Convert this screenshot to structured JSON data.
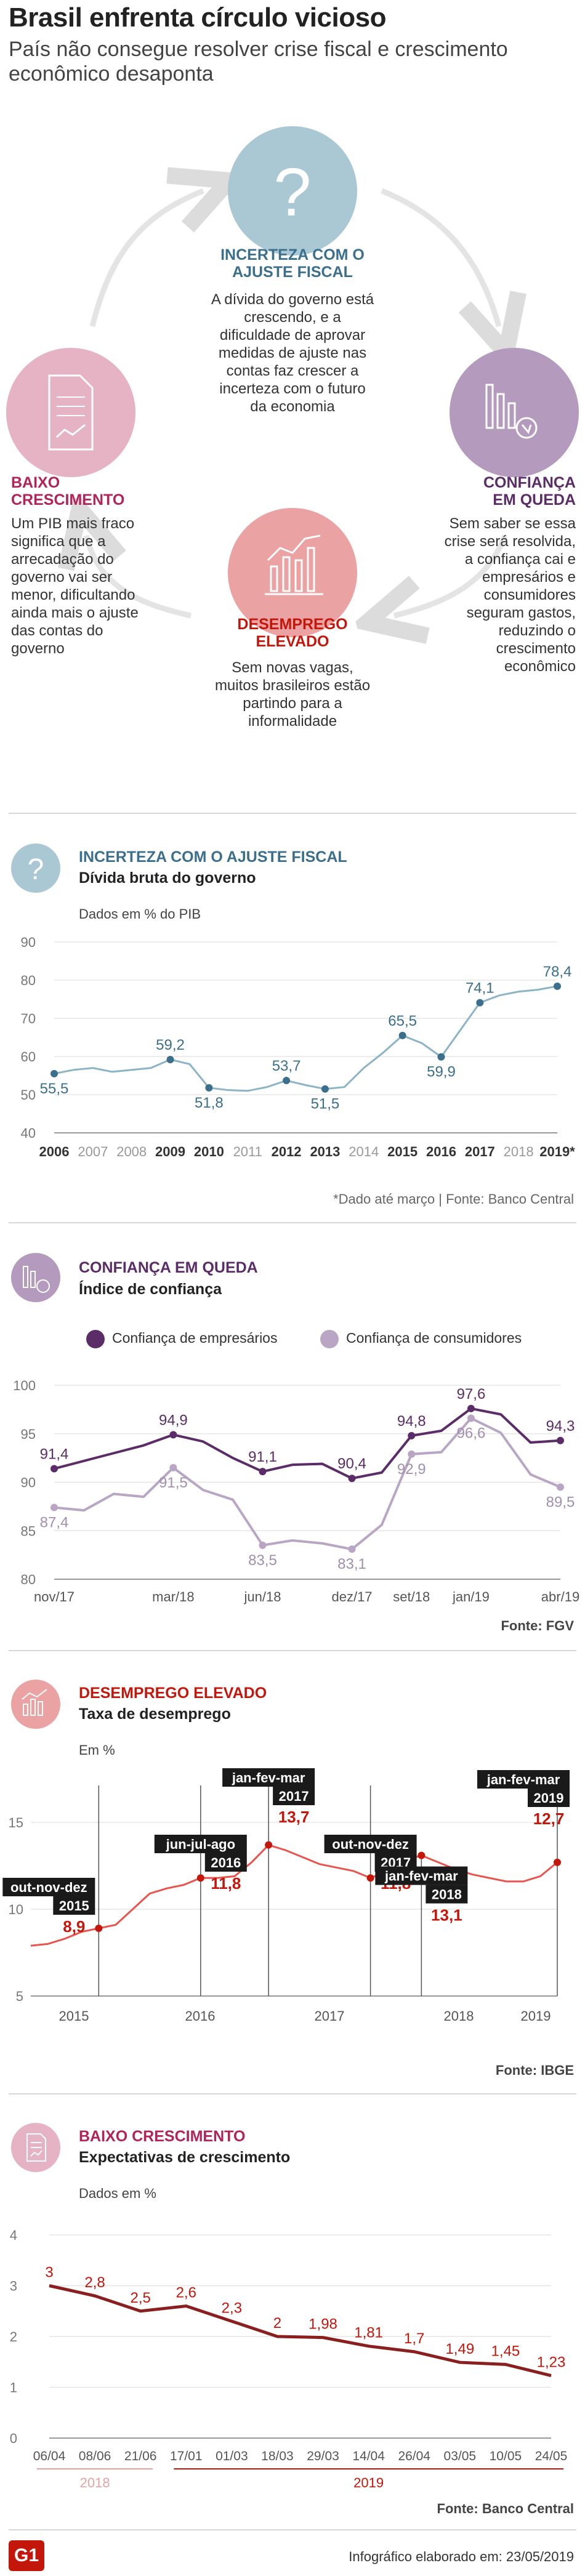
{
  "header": {
    "title": "Brasil enfrenta círculo vicioso",
    "subtitle": "País não consegue resolver crise fiscal e crescimento econômico desaponta"
  },
  "cycle": {
    "top": {
      "title": "INCERTEZA COM O AJUSTE FISCAL",
      "body": "A dívida do governo está crescendo, e a dificuldade de aprovar medidas de ajuste nas contas faz crescer a incerteza com o futuro da economia",
      "color": "#3b6f8c"
    },
    "right": {
      "title": "CONFIANÇA EM QUEDA",
      "body": "Sem saber se essa crise será resolvida, a confiança cai e empresários e consumidores seguram gastos, reduzindo o crescimento econômico",
      "color": "#5b2c67"
    },
    "bottom": {
      "title": "DESEMPREGO ELEVADO",
      "body": "Sem novas vagas, muitos brasileiros estão partindo para a informalidade",
      "color": "#c4170c"
    },
    "left": {
      "title": "BAIXO CRESCIMENTO",
      "body": "Um PIB mais fraco significa que a arrecadação do governo vai ser menor, dificultando ainda mais o ajuste das contas do governo",
      "color": "#b0245a"
    }
  },
  "sections": {
    "debt": {
      "head": "INCERTEZA COM O AJUSTE FISCAL",
      "sub": "Dívida bruta do governo",
      "unit": "Dados em % do PIB",
      "note": "*Dado até março | Fonte: Banco Central",
      "color": "#3b6f8c"
    },
    "confidence": {
      "head": "CONFIANÇA EM QUEDA",
      "sub": "Índice de confiança",
      "legend1": "Confiança de empresários",
      "legend2": "Confiança de consumidores",
      "source": "Fonte: FGV",
      "color": "#5b2c67"
    },
    "unemployment": {
      "head": "DESEMPREGO ELEVADO",
      "sub": "Taxa de desemprego",
      "unit": "Em %",
      "source": "Fonte: IBGE",
      "color": "#c4170c"
    },
    "growth": {
      "head": "BAIXO CRESCIMENTO",
      "sub": "Expectativas de crescimento",
      "unit": "Dados em %",
      "source": "Fonte: Banco Central",
      "color": "#b0245a"
    }
  },
  "footer": {
    "logo": "G1",
    "credit": "Infográfico elaborado em: 23/05/2019"
  },
  "chart_data": [
    {
      "type": "line",
      "title": "Dívida bruta do governo",
      "ylabel": "Dados em % do PIB",
      "ylim": [
        40,
        90
      ],
      "yticks": [
        40,
        50,
        60,
        70,
        80,
        90
      ],
      "x": [
        "2006",
        "",
        "2007",
        "",
        "2008",
        "",
        "2009",
        "",
        "2010",
        "",
        "2011",
        "",
        "2012",
        "",
        "2013",
        "",
        "2014",
        "",
        "2015",
        "",
        "2016",
        "",
        "2017",
        "",
        "2018",
        "",
        "2019*"
      ],
      "tick_labels": [
        "2006",
        "2007",
        "2008",
        "2009",
        "2010",
        "2011",
        "2012",
        "2013",
        "2014",
        "2015",
        "2016",
        "2017",
        "2018",
        "2019*"
      ],
      "bold_ticks": [
        "2006",
        "2009",
        "2010",
        "2012",
        "2013",
        "2015",
        "2016",
        "2017",
        "2019*"
      ],
      "values": [
        55.5,
        56.5,
        57.0,
        56.0,
        56.5,
        57.0,
        59.2,
        58.0,
        51.8,
        51.2,
        51.0,
        52.0,
        53.7,
        52.5,
        51.5,
        52.0,
        57.0,
        61.0,
        65.5,
        63.5,
        59.9,
        67.0,
        74.1,
        76.0,
        77.0,
        77.5,
        78.4
      ],
      "labels": {
        "0": "55,5",
        "6": "59,2",
        "8": "51,8",
        "12": "53,7",
        "14": "51,5",
        "18": "65,5",
        "20": "59,9",
        "22": "74,1",
        "26": "78,4"
      },
      "color": "#3b6f8c"
    },
    {
      "type": "line",
      "title": "Índice de confiança",
      "ylim": [
        80,
        100
      ],
      "yticks": [
        80,
        85,
        90,
        95,
        100
      ],
      "tick_labels": [
        "nov/17",
        "mar/18",
        "jun/18",
        "dez/17",
        "set/18",
        "jan/19",
        "abr/19"
      ],
      "series": [
        {
          "name": "Confiança de empresários",
          "color": "#5b2c67",
          "values": [
            91.4,
            92.2,
            93.0,
            93.8,
            94.9,
            94.2,
            92.5,
            91.1,
            91.8,
            91.9,
            90.4,
            91.0,
            94.8,
            95.3,
            97.6,
            97.0,
            94.1,
            94.3
          ],
          "labels": {
            "0": "91,4",
            "4": "94,9",
            "7": "91,1",
            "10": "90,4",
            "12": "94,8",
            "14": "97,6",
            "17": "94,3"
          }
        },
        {
          "name": "Confiança de consumidores",
          "color": "#b9a6c5",
          "values": [
            87.4,
            87.1,
            88.8,
            88.5,
            91.5,
            89.2,
            88.2,
            83.5,
            84.0,
            83.7,
            83.1,
            85.6,
            92.9,
            93.1,
            96.6,
            95.1,
            90.8,
            89.5
          ],
          "labels": {
            "0": "87,4",
            "4": "91,5",
            "7": "83,5",
            "10": "83,1",
            "12": "92,9",
            "14": "96,6",
            "17": "89,5"
          }
        }
      ]
    },
    {
      "type": "line",
      "title": "Taxa de desemprego",
      "ylabel": "Em %",
      "ylim": [
        5,
        15
      ],
      "yticks": [
        5,
        10,
        15
      ],
      "tick_labels": [
        "2015",
        "2016",
        "2017",
        "2018",
        "2019"
      ],
      "values": [
        7.9,
        8.0,
        8.3,
        8.7,
        8.9,
        9.1,
        10.0,
        10.9,
        11.2,
        11.4,
        11.8,
        11.8,
        11.9,
        12.7,
        13.7,
        13.4,
        13.0,
        12.6,
        12.4,
        12.2,
        11.8,
        12.2,
        12.8,
        13.1,
        12.7,
        12.3,
        12.0,
        11.8,
        11.6,
        11.6,
        11.9,
        12.7
      ],
      "annotations": [
        {
          "index": 4,
          "period": "out-nov-dez",
          "year": "2015",
          "value": "8,9"
        },
        {
          "index": 10,
          "period": "jun-jul-ago",
          "year": "2016",
          "value": "11,8"
        },
        {
          "index": 14,
          "period": "jan-fev-mar",
          "year": "2017",
          "value": "13,7"
        },
        {
          "index": 20,
          "period": "out-nov-dez",
          "year": "2017",
          "value": "11,8"
        },
        {
          "index": 23,
          "period": "jan-fev-mar",
          "year": "2018",
          "value": "13,1"
        },
        {
          "index": 31,
          "period": "jan-fev-mar",
          "year": "2019",
          "value": "12,7"
        }
      ],
      "color": "#e8554e"
    },
    {
      "type": "line",
      "title": "Expectativas de crescimento",
      "ylabel": "Dados em %",
      "ylim": [
        0,
        4
      ],
      "yticks": [
        0,
        1,
        2,
        3,
        4
      ],
      "categories": [
        "06/04",
        "08/06",
        "21/06",
        "17/01",
        "01/03",
        "18/03",
        "29/03",
        "14/04",
        "26/04",
        "03/05",
        "10/05",
        "24/05"
      ],
      "year_groups": [
        {
          "label": "2018",
          "from": 0,
          "to": 2
        },
        {
          "label": "2019",
          "from": 3,
          "to": 11
        }
      ],
      "values": [
        3,
        2.8,
        2.5,
        2.6,
        2.3,
        2,
        1.98,
        1.81,
        1.7,
        1.49,
        1.45,
        1.23
      ],
      "labels": [
        "3",
        "2,8",
        "2,5",
        "2,6",
        "2,3",
        "2",
        "1,98",
        "1,81",
        "1,7",
        "1,49",
        "1,45",
        "1,23"
      ],
      "color": "#c4170c"
    }
  ]
}
